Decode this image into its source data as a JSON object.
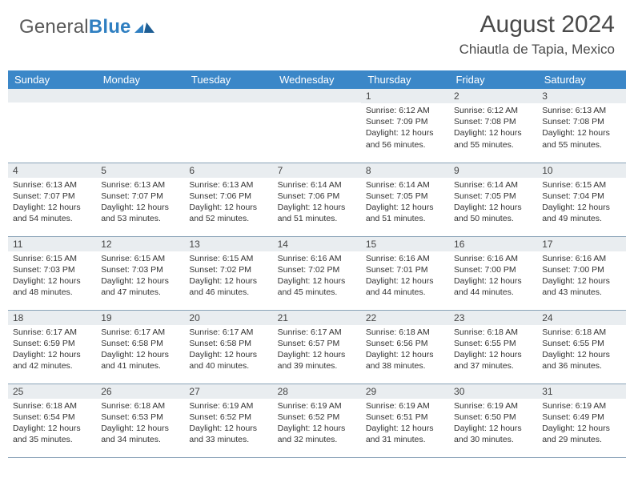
{
  "brand": {
    "part1": "General",
    "part2": "Blue"
  },
  "title": "August 2024",
  "location": "Chiautla de Tapia, Mexico",
  "colors": {
    "header_bg": "#3b87c8",
    "header_text": "#ffffff",
    "daynum_bg": "#e9edf0",
    "rule": "#8aa3b8",
    "body_text": "#333333",
    "title_text": "#4a4a4a",
    "brand_gray": "#5a5a5a",
    "brand_blue": "#2f7fc1",
    "page_bg": "#ffffff"
  },
  "day_names": [
    "Sunday",
    "Monday",
    "Tuesday",
    "Wednesday",
    "Thursday",
    "Friday",
    "Saturday"
  ],
  "weeks": [
    [
      {
        "n": "",
        "sr": "",
        "ss": "",
        "dl": ""
      },
      {
        "n": "",
        "sr": "",
        "ss": "",
        "dl": ""
      },
      {
        "n": "",
        "sr": "",
        "ss": "",
        "dl": ""
      },
      {
        "n": "",
        "sr": "",
        "ss": "",
        "dl": ""
      },
      {
        "n": "1",
        "sr": "Sunrise: 6:12 AM",
        "ss": "Sunset: 7:09 PM",
        "dl": "Daylight: 12 hours and 56 minutes."
      },
      {
        "n": "2",
        "sr": "Sunrise: 6:12 AM",
        "ss": "Sunset: 7:08 PM",
        "dl": "Daylight: 12 hours and 55 minutes."
      },
      {
        "n": "3",
        "sr": "Sunrise: 6:13 AM",
        "ss": "Sunset: 7:08 PM",
        "dl": "Daylight: 12 hours and 55 minutes."
      }
    ],
    [
      {
        "n": "4",
        "sr": "Sunrise: 6:13 AM",
        "ss": "Sunset: 7:07 PM",
        "dl": "Daylight: 12 hours and 54 minutes."
      },
      {
        "n": "5",
        "sr": "Sunrise: 6:13 AM",
        "ss": "Sunset: 7:07 PM",
        "dl": "Daylight: 12 hours and 53 minutes."
      },
      {
        "n": "6",
        "sr": "Sunrise: 6:13 AM",
        "ss": "Sunset: 7:06 PM",
        "dl": "Daylight: 12 hours and 52 minutes."
      },
      {
        "n": "7",
        "sr": "Sunrise: 6:14 AM",
        "ss": "Sunset: 7:06 PM",
        "dl": "Daylight: 12 hours and 51 minutes."
      },
      {
        "n": "8",
        "sr": "Sunrise: 6:14 AM",
        "ss": "Sunset: 7:05 PM",
        "dl": "Daylight: 12 hours and 51 minutes."
      },
      {
        "n": "9",
        "sr": "Sunrise: 6:14 AM",
        "ss": "Sunset: 7:05 PM",
        "dl": "Daylight: 12 hours and 50 minutes."
      },
      {
        "n": "10",
        "sr": "Sunrise: 6:15 AM",
        "ss": "Sunset: 7:04 PM",
        "dl": "Daylight: 12 hours and 49 minutes."
      }
    ],
    [
      {
        "n": "11",
        "sr": "Sunrise: 6:15 AM",
        "ss": "Sunset: 7:03 PM",
        "dl": "Daylight: 12 hours and 48 minutes."
      },
      {
        "n": "12",
        "sr": "Sunrise: 6:15 AM",
        "ss": "Sunset: 7:03 PM",
        "dl": "Daylight: 12 hours and 47 minutes."
      },
      {
        "n": "13",
        "sr": "Sunrise: 6:15 AM",
        "ss": "Sunset: 7:02 PM",
        "dl": "Daylight: 12 hours and 46 minutes."
      },
      {
        "n": "14",
        "sr": "Sunrise: 6:16 AM",
        "ss": "Sunset: 7:02 PM",
        "dl": "Daylight: 12 hours and 45 minutes."
      },
      {
        "n": "15",
        "sr": "Sunrise: 6:16 AM",
        "ss": "Sunset: 7:01 PM",
        "dl": "Daylight: 12 hours and 44 minutes."
      },
      {
        "n": "16",
        "sr": "Sunrise: 6:16 AM",
        "ss": "Sunset: 7:00 PM",
        "dl": "Daylight: 12 hours and 44 minutes."
      },
      {
        "n": "17",
        "sr": "Sunrise: 6:16 AM",
        "ss": "Sunset: 7:00 PM",
        "dl": "Daylight: 12 hours and 43 minutes."
      }
    ],
    [
      {
        "n": "18",
        "sr": "Sunrise: 6:17 AM",
        "ss": "Sunset: 6:59 PM",
        "dl": "Daylight: 12 hours and 42 minutes."
      },
      {
        "n": "19",
        "sr": "Sunrise: 6:17 AM",
        "ss": "Sunset: 6:58 PM",
        "dl": "Daylight: 12 hours and 41 minutes."
      },
      {
        "n": "20",
        "sr": "Sunrise: 6:17 AM",
        "ss": "Sunset: 6:58 PM",
        "dl": "Daylight: 12 hours and 40 minutes."
      },
      {
        "n": "21",
        "sr": "Sunrise: 6:17 AM",
        "ss": "Sunset: 6:57 PM",
        "dl": "Daylight: 12 hours and 39 minutes."
      },
      {
        "n": "22",
        "sr": "Sunrise: 6:18 AM",
        "ss": "Sunset: 6:56 PM",
        "dl": "Daylight: 12 hours and 38 minutes."
      },
      {
        "n": "23",
        "sr": "Sunrise: 6:18 AM",
        "ss": "Sunset: 6:55 PM",
        "dl": "Daylight: 12 hours and 37 minutes."
      },
      {
        "n": "24",
        "sr": "Sunrise: 6:18 AM",
        "ss": "Sunset: 6:55 PM",
        "dl": "Daylight: 12 hours and 36 minutes."
      }
    ],
    [
      {
        "n": "25",
        "sr": "Sunrise: 6:18 AM",
        "ss": "Sunset: 6:54 PM",
        "dl": "Daylight: 12 hours and 35 minutes."
      },
      {
        "n": "26",
        "sr": "Sunrise: 6:18 AM",
        "ss": "Sunset: 6:53 PM",
        "dl": "Daylight: 12 hours and 34 minutes."
      },
      {
        "n": "27",
        "sr": "Sunrise: 6:19 AM",
        "ss": "Sunset: 6:52 PM",
        "dl": "Daylight: 12 hours and 33 minutes."
      },
      {
        "n": "28",
        "sr": "Sunrise: 6:19 AM",
        "ss": "Sunset: 6:52 PM",
        "dl": "Daylight: 12 hours and 32 minutes."
      },
      {
        "n": "29",
        "sr": "Sunrise: 6:19 AM",
        "ss": "Sunset: 6:51 PM",
        "dl": "Daylight: 12 hours and 31 minutes."
      },
      {
        "n": "30",
        "sr": "Sunrise: 6:19 AM",
        "ss": "Sunset: 6:50 PM",
        "dl": "Daylight: 12 hours and 30 minutes."
      },
      {
        "n": "31",
        "sr": "Sunrise: 6:19 AM",
        "ss": "Sunset: 6:49 PM",
        "dl": "Daylight: 12 hours and 29 minutes."
      }
    ]
  ]
}
